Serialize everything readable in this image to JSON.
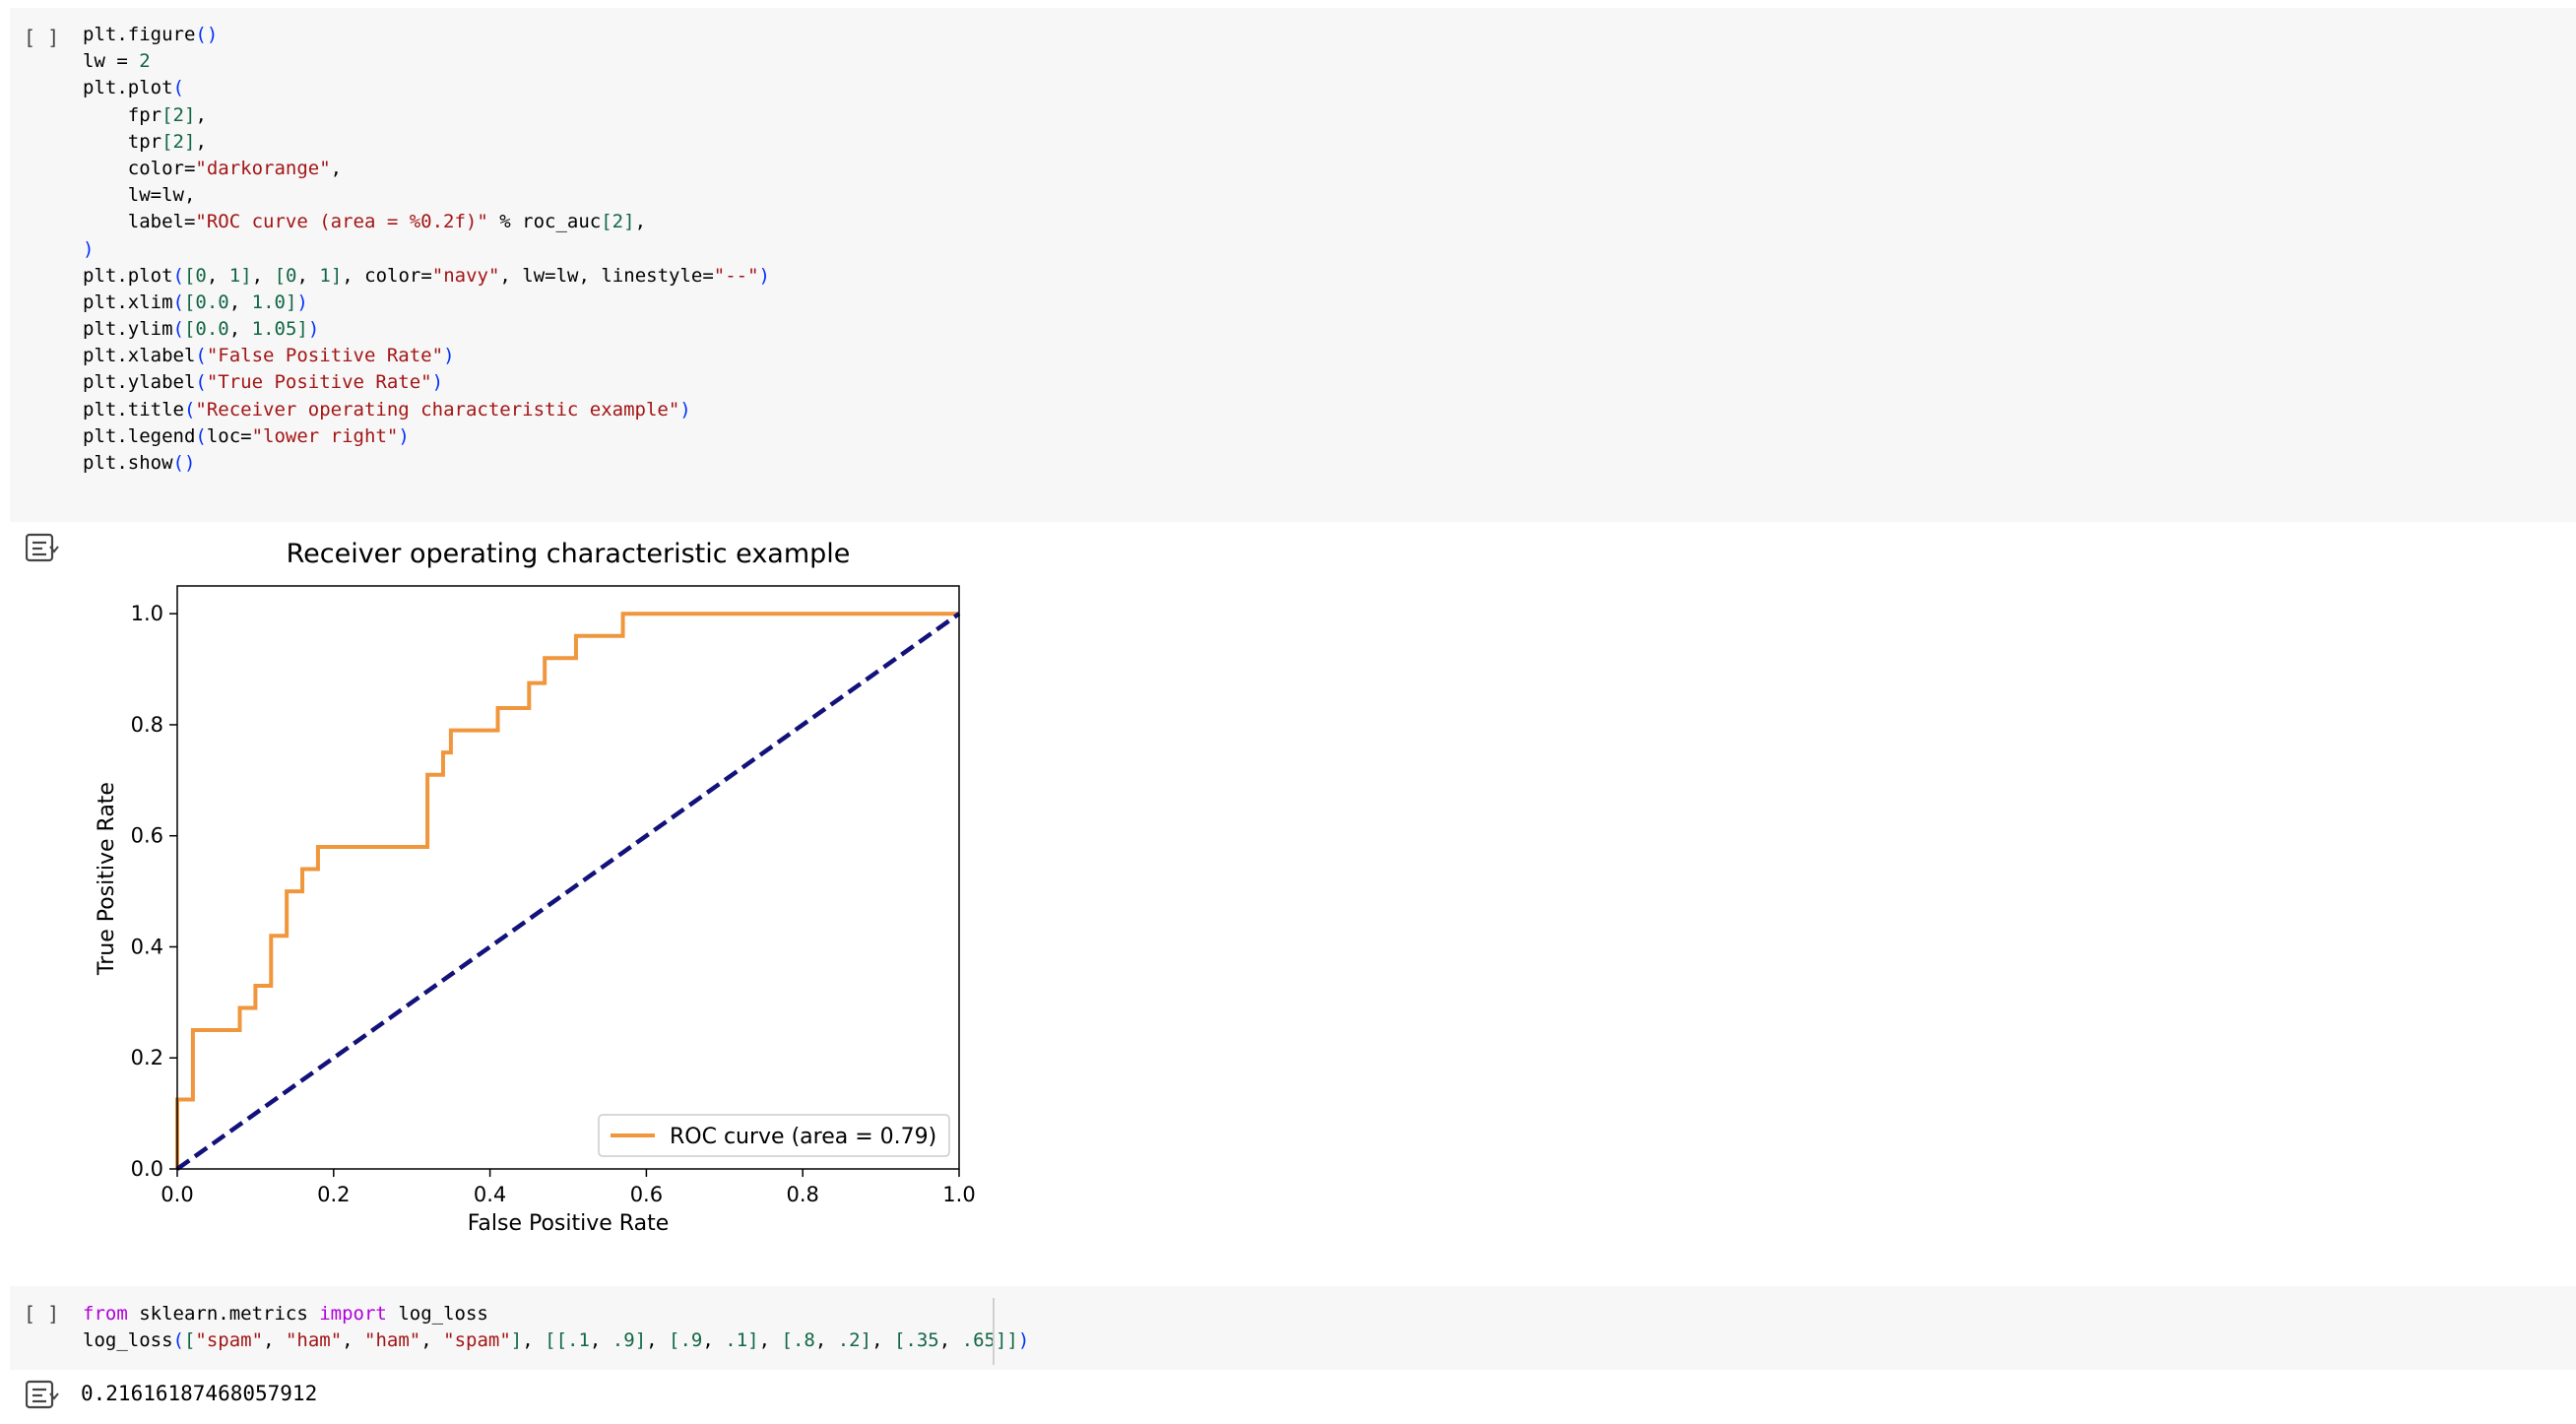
{
  "cells": [
    {
      "run_label": "[ ]",
      "code_lines": [
        [
          [
            "plt.figure",
            ""
          ],
          [
            "(",
            "p"
          ],
          [
            ")",
            "p"
          ]
        ],
        [
          [
            "lw = ",
            ""
          ],
          [
            "2",
            "num"
          ]
        ],
        [
          [
            "plt.plot",
            ""
          ],
          [
            "(",
            "p"
          ]
        ],
        [
          [
            "    fpr",
            ""
          ],
          [
            "[",
            "num"
          ],
          [
            "2",
            "num"
          ],
          [
            "]",
            "num"
          ],
          [
            ",",
            ""
          ]
        ],
        [
          [
            "    tpr",
            ""
          ],
          [
            "[",
            "num"
          ],
          [
            "2",
            "num"
          ],
          [
            "]",
            "num"
          ],
          [
            ",",
            ""
          ]
        ],
        [
          [
            "    color=",
            ""
          ],
          [
            "\"darkorange\"",
            "str"
          ],
          [
            ",",
            ""
          ]
        ],
        [
          [
            "    lw=lw,",
            ""
          ]
        ],
        [
          [
            "    label=",
            ""
          ],
          [
            "\"ROC curve (area = %0.2f)\"",
            "str"
          ],
          [
            " % roc_auc",
            ""
          ],
          [
            "[",
            "num"
          ],
          [
            "2",
            "num"
          ],
          [
            "]",
            "num"
          ],
          [
            ",",
            ""
          ]
        ],
        [
          [
            ")",
            "p"
          ]
        ],
        [
          [
            "plt.plot",
            ""
          ],
          [
            "(",
            "p"
          ],
          [
            "[",
            "num"
          ],
          [
            "0",
            "num"
          ],
          [
            ", ",
            ""
          ],
          [
            "1",
            "num"
          ],
          [
            "]",
            "num"
          ],
          [
            ", ",
            ""
          ],
          [
            "[",
            "num"
          ],
          [
            "0",
            "num"
          ],
          [
            ", ",
            ""
          ],
          [
            "1",
            "num"
          ],
          [
            "]",
            "num"
          ],
          [
            ", color=",
            ""
          ],
          [
            "\"navy\"",
            "str"
          ],
          [
            ", lw=lw, linestyle=",
            ""
          ],
          [
            "\"--\"",
            "str"
          ],
          [
            ")",
            "p"
          ]
        ],
        [
          [
            "plt.xlim",
            ""
          ],
          [
            "(",
            "p"
          ],
          [
            "[",
            "num"
          ],
          [
            "0.0",
            "num"
          ],
          [
            ", ",
            ""
          ],
          [
            "1.0",
            "num"
          ],
          [
            "]",
            "num"
          ],
          [
            ")",
            "p"
          ]
        ],
        [
          [
            "plt.ylim",
            ""
          ],
          [
            "(",
            "p"
          ],
          [
            "[",
            "num"
          ],
          [
            "0.0",
            "num"
          ],
          [
            ", ",
            ""
          ],
          [
            "1.05",
            "num"
          ],
          [
            "]",
            "num"
          ],
          [
            ")",
            "p"
          ]
        ],
        [
          [
            "plt.xlabel",
            ""
          ],
          [
            "(",
            "p"
          ],
          [
            "\"False Positive Rate\"",
            "str"
          ],
          [
            ")",
            "p"
          ]
        ],
        [
          [
            "plt.ylabel",
            ""
          ],
          [
            "(",
            "p"
          ],
          [
            "\"True Positive Rate\"",
            "str"
          ],
          [
            ")",
            "p"
          ]
        ],
        [
          [
            "plt.title",
            ""
          ],
          [
            "(",
            "p"
          ],
          [
            "\"Receiver operating characteristic example\"",
            "str"
          ],
          [
            ")",
            "p"
          ]
        ],
        [
          [
            "plt.legend",
            ""
          ],
          [
            "(",
            "p"
          ],
          [
            "loc=",
            ""
          ],
          [
            "\"lower right\"",
            "str"
          ],
          [
            ")",
            "p"
          ]
        ],
        [
          [
            "plt.show",
            ""
          ],
          [
            "(",
            "p"
          ],
          [
            ")",
            "p"
          ]
        ]
      ]
    },
    {
      "run_label": "[ ]",
      "code_lines": [
        [
          [
            "from",
            "kw"
          ],
          [
            " sklearn.metrics ",
            ""
          ],
          [
            "import",
            "kw"
          ],
          [
            " log_loss",
            ""
          ]
        ],
        [
          [
            "log_loss",
            ""
          ],
          [
            "(",
            "p"
          ],
          [
            "[",
            "num"
          ],
          [
            "\"spam\"",
            "str"
          ],
          [
            ", ",
            ""
          ],
          [
            "\"ham\"",
            "str"
          ],
          [
            ", ",
            ""
          ],
          [
            "\"ham\"",
            "str"
          ],
          [
            ", ",
            ""
          ],
          [
            "\"spam\"",
            "str"
          ],
          [
            "]",
            "num"
          ],
          [
            ", ",
            ""
          ],
          [
            "[[",
            "num"
          ],
          [
            ".1",
            "num"
          ],
          [
            ", ",
            ""
          ],
          [
            ".9",
            "num"
          ],
          [
            "]",
            "num"
          ],
          [
            ", ",
            ""
          ],
          [
            "[",
            "num"
          ],
          [
            ".9",
            "num"
          ],
          [
            ", ",
            ""
          ],
          [
            ".1",
            "num"
          ],
          [
            "]",
            "num"
          ],
          [
            ", ",
            ""
          ],
          [
            "[",
            "num"
          ],
          [
            ".8",
            "num"
          ],
          [
            ", ",
            ""
          ],
          [
            ".2",
            "num"
          ],
          [
            "]",
            "num"
          ],
          [
            ", ",
            ""
          ],
          [
            "[",
            "num"
          ],
          [
            ".35",
            "num"
          ],
          [
            ", ",
            ""
          ],
          [
            ".65",
            "num"
          ],
          [
            "]]",
            "num"
          ],
          [
            ")",
            "p"
          ]
        ]
      ],
      "output_text": "0.21616187468057912"
    }
  ],
  "colors": {
    "roc_line": "#f0963c",
    "diagonal": "#12127a"
  },
  "chart_data": {
    "type": "line",
    "title": "Receiver operating characteristic example",
    "xlabel": "False Positive Rate",
    "ylabel": "True Positive Rate",
    "xlim": [
      0.0,
      1.0
    ],
    "ylim": [
      0.0,
      1.05
    ],
    "xticks": [
      0.0,
      0.2,
      0.4,
      0.6,
      0.8,
      1.0
    ],
    "yticks": [
      0.0,
      0.2,
      0.4,
      0.6,
      0.8,
      1.0
    ],
    "xtick_labels": [
      "0.0",
      "0.2",
      "0.4",
      "0.6",
      "0.8",
      "1.0"
    ],
    "ytick_labels": [
      "0.0",
      "0.2",
      "0.4",
      "0.6",
      "0.8",
      "1.0"
    ],
    "grid": false,
    "legend_loc": "lower right",
    "series": [
      {
        "name": "ROC curve (area = 0.79)",
        "style": "solid",
        "x": [
          0.0,
          0.0,
          0.02,
          0.02,
          0.08,
          0.08,
          0.1,
          0.1,
          0.12,
          0.12,
          0.14,
          0.14,
          0.16,
          0.16,
          0.18,
          0.18,
          0.32,
          0.32,
          0.34,
          0.34,
          0.35,
          0.35,
          0.41,
          0.41,
          0.45,
          0.45,
          0.47,
          0.47,
          0.51,
          0.51,
          0.57,
          0.57,
          1.0
        ],
        "y": [
          0.0,
          0.125,
          0.125,
          0.25,
          0.25,
          0.29,
          0.29,
          0.33,
          0.33,
          0.42,
          0.42,
          0.5,
          0.5,
          0.54,
          0.54,
          0.58,
          0.58,
          0.71,
          0.71,
          0.75,
          0.75,
          0.79,
          0.79,
          0.83,
          0.83,
          0.875,
          0.875,
          0.92,
          0.92,
          0.96,
          0.96,
          1.0,
          1.0
        ]
      },
      {
        "style": "dashed",
        "x": [
          0,
          1
        ],
        "y": [
          0,
          1
        ]
      }
    ]
  }
}
